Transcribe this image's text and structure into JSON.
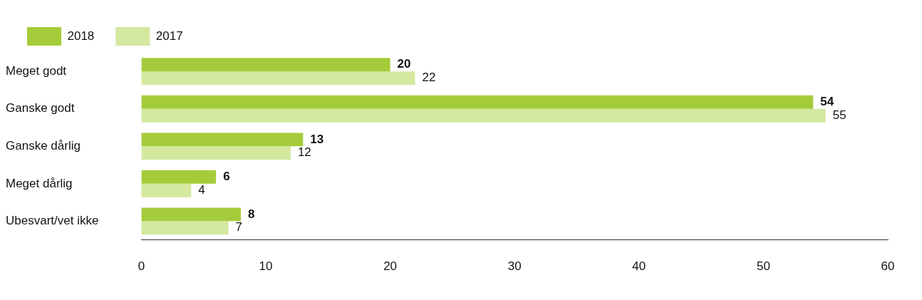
{
  "chart_data": {
    "type": "bar",
    "orientation": "horizontal",
    "categories": [
      "Meget godt",
      "Ganske godt",
      "Ganske dårlig",
      "Meget dårlig",
      "Ubesvart/vet ikke"
    ],
    "series": [
      {
        "name": "2018",
        "color": "#a4cc3a",
        "values": [
          20,
          54,
          13,
          6,
          8
        ]
      },
      {
        "name": "2017",
        "color": "#d4e8a0",
        "values": [
          22,
          55,
          12,
          4,
          7
        ]
      }
    ],
    "xlim": [
      0,
      60
    ],
    "xticks": [
      0,
      10,
      20,
      30,
      40,
      50,
      60
    ],
    "data_labels": true,
    "legend": "top left",
    "grid": false
  }
}
